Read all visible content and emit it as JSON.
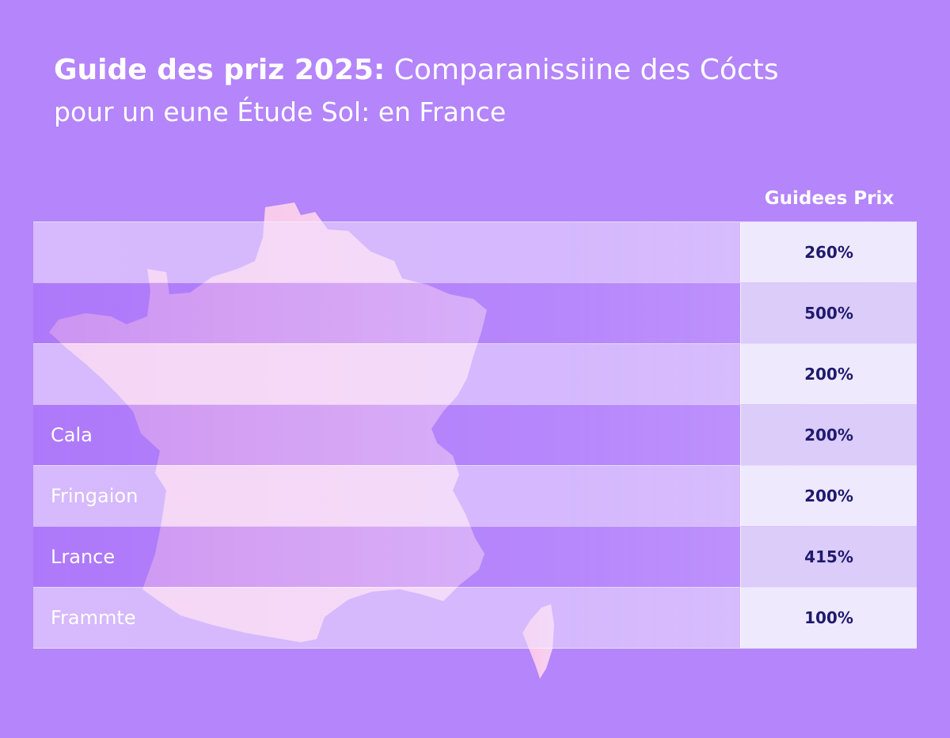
{
  "title": {
    "bold": "Guide des priz 2025:",
    "rest": "Comparanissiine des Cócts",
    "line2": "pour un eune Étude Sol: en France"
  },
  "table": {
    "column_header": "Guidees Prix",
    "rows": [
      {
        "label": "",
        "value": "260%"
      },
      {
        "label": "",
        "value": "500%"
      },
      {
        "label": "",
        "value": "200%"
      },
      {
        "label": "Cala",
        "value": "200%"
      },
      {
        "label": "Fringaion",
        "value": "200%"
      },
      {
        "label": "Lrance",
        "value": "415%"
      },
      {
        "label": "Frammte",
        "value": "100%"
      }
    ]
  },
  "colors": {
    "background": "#b485fb",
    "map_pink": "#fbc1e4",
    "value_text": "#1e1a6e"
  }
}
